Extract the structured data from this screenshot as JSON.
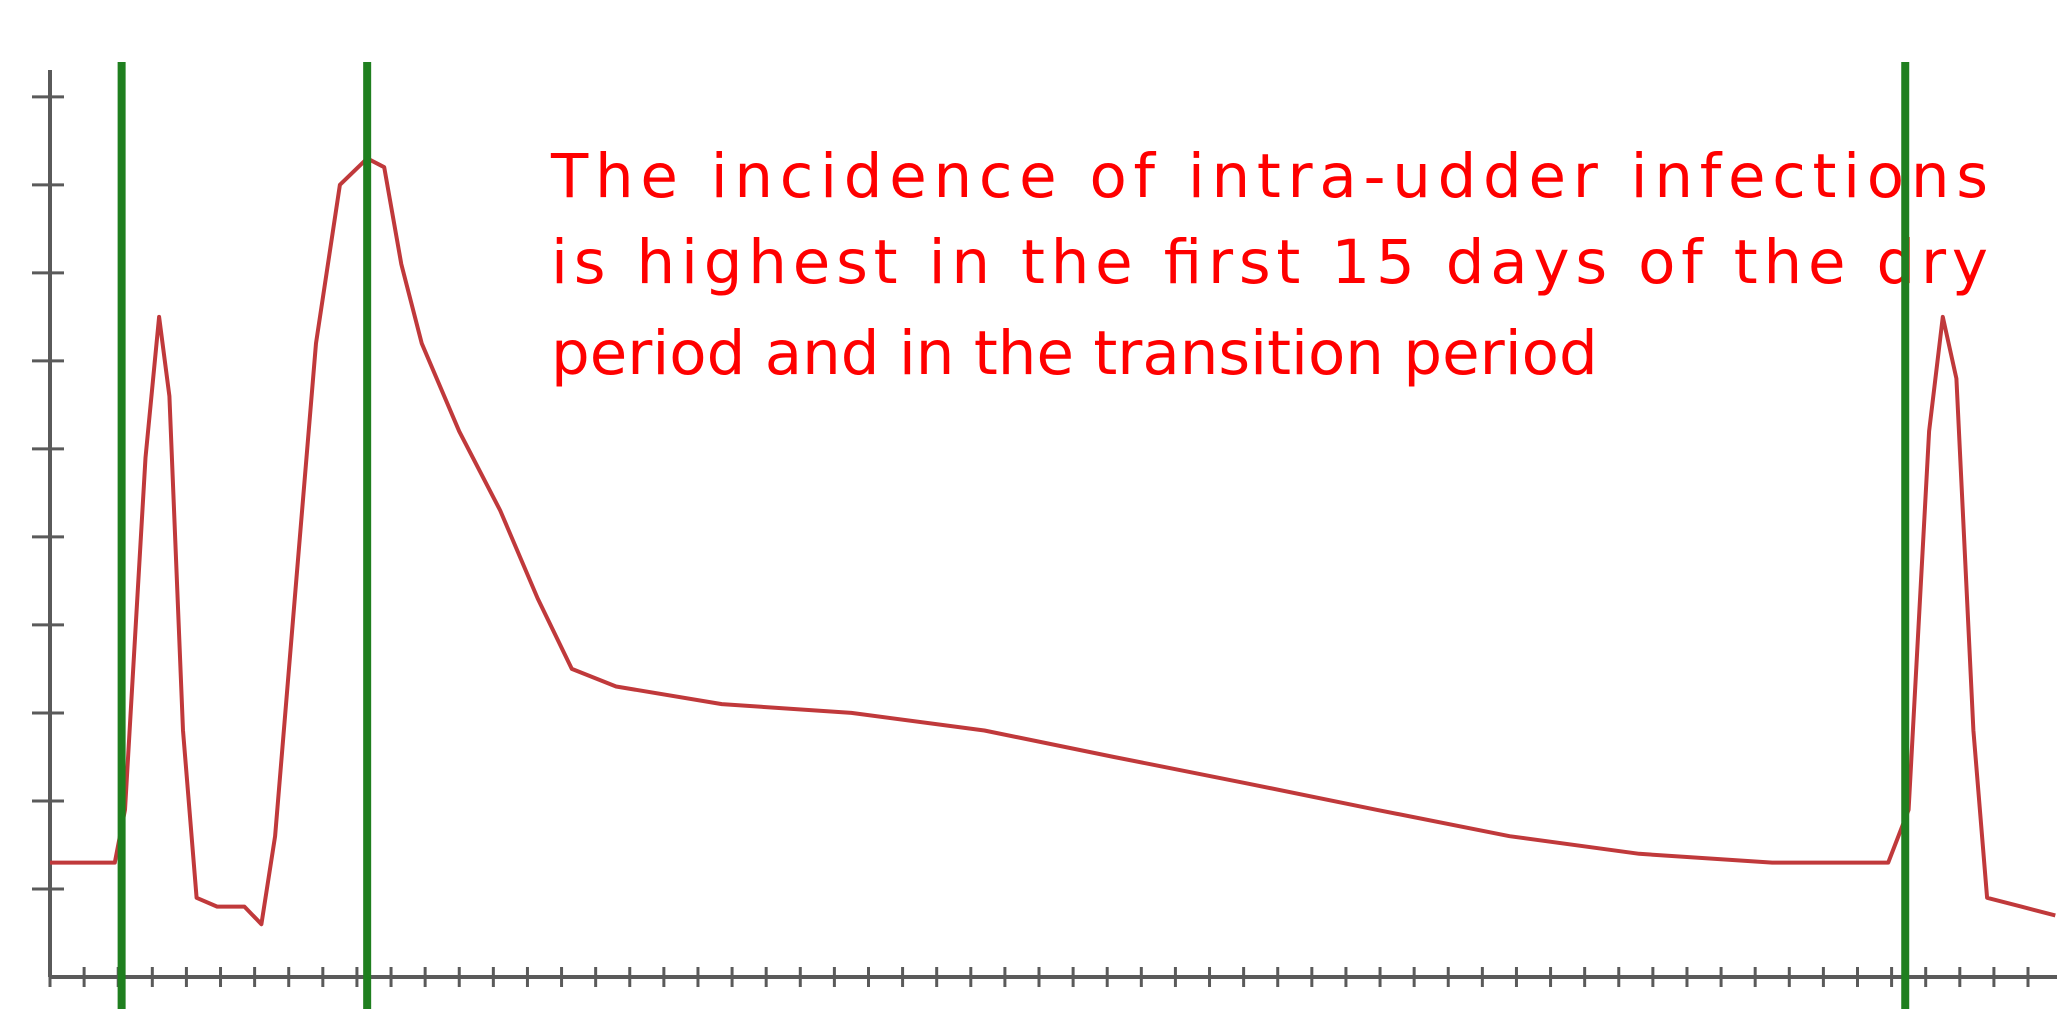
{
  "chart_data": {
    "type": "line",
    "annotation": [
      "The incidence of intra-udder infections",
      "is highest in the first 15 days of the dry",
      "period and in the transition period"
    ],
    "series": [
      {
        "color": "#c0393b",
        "x": [
          0,
          1.9,
          2.2,
          2.8,
          3.2,
          3.5,
          3.9,
          4.3,
          4.9,
          5.7,
          6.2,
          6.6,
          7.2,
          7.8,
          8.5,
          9.3,
          9.8,
          10.3,
          10.9,
          12.0,
          13.2,
          14.3,
          15.3,
          16.6,
          19.7,
          23.5,
          27.4,
          31.2,
          35.1,
          38.9,
          42.8,
          46.6,
          50.5,
          53.9,
          54.5,
          55.1,
          55.5,
          55.9,
          56.4,
          56.8,
          57.8,
          58.8
        ],
        "values": [
          1.3,
          1.3,
          1.9,
          5.9,
          7.5,
          6.6,
          2.8,
          0.9,
          0.8,
          0.8,
          0.6,
          1.6,
          4.4,
          7.2,
          9.0,
          9.3,
          9.2,
          8.1,
          7.2,
          6.2,
          5.3,
          4.3,
          3.5,
          3.3,
          3.1,
          3.0,
          2.8,
          2.5,
          2.2,
          1.9,
          1.6,
          1.4,
          1.3,
          1.3,
          1.9,
          6.2,
          7.5,
          6.8,
          2.8,
          0.9,
          0.8,
          0.7
        ]
      }
    ],
    "markers": {
      "color": "#1f7f1f",
      "x": [
        2.1,
        9.3,
        54.4
      ]
    },
    "xlim": [
      0,
      58.85
    ],
    "ylim": [
      0,
      11.1
    ],
    "xticks": [
      0,
      1,
      2,
      3,
      4,
      5,
      6,
      7,
      8,
      9,
      10,
      11,
      12,
      13,
      14,
      15,
      16,
      17,
      18,
      19,
      20,
      21,
      22,
      23,
      24,
      25,
      26,
      27,
      28,
      29,
      30,
      31,
      32,
      33,
      34,
      35,
      36,
      37,
      38,
      39,
      40,
      41,
      42,
      43,
      44,
      45,
      46,
      47,
      48,
      49,
      50,
      51,
      52,
      53,
      54,
      55,
      56,
      57,
      58
    ],
    "yticks": [
      1,
      2,
      3,
      4,
      5,
      6,
      7,
      8,
      9,
      10
    ]
  }
}
